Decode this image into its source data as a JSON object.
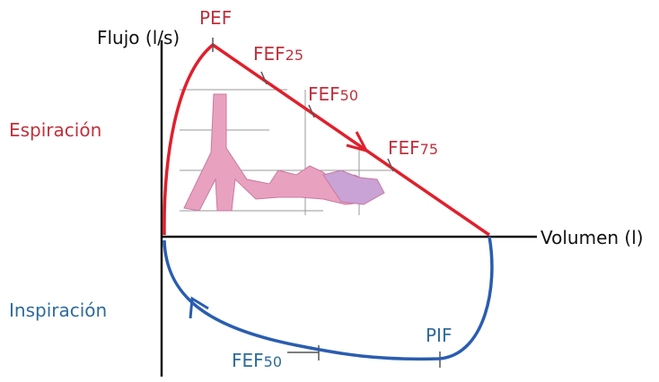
{
  "axes": {
    "y_label": "Flujo (l/s)",
    "x_label": "Volumen (l)"
  },
  "regions": {
    "expiration": "Espiración",
    "inspiration": "Inspiración"
  },
  "points": {
    "pef": "PEF",
    "fef25": {
      "text": "FEF",
      "sub": "25"
    },
    "fef50": {
      "text": "FEF",
      "sub": "50"
    },
    "fef75": {
      "text": "FEF",
      "sub": "75"
    },
    "pif": "PIF",
    "fef50_insp": {
      "text": "FEF",
      "sub": "50"
    }
  }
}
